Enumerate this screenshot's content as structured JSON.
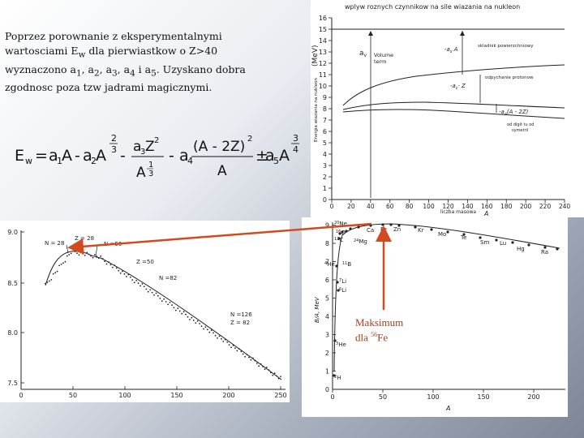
{
  "intro": {
    "line1": "Poprzez porownanie z eksperymentalnymi",
    "line2_a": "wartosciami E",
    "line2_sub": "w",
    "line2_b": " dla pierwiastkow o Z>40",
    "line3": "wyznaczono a",
    "line3_tail": " i  a",
    "line3_end": ". Uzyskano dobra",
    "line4": "zgodnosc poza tzw jadrami magicznymi.",
    "sub1": "1",
    "sub2": "2",
    "sub3": "3",
    "sub4": "4",
    "sub5": "5"
  },
  "formula": {
    "lhs": "E",
    "lhs_sub": "w",
    "eq": "=",
    "a1A": "a",
    "s1": "1",
    "A": "A",
    "minus": "-",
    "a2": "a",
    "s2": "2",
    "exp_num": "2",
    "exp_den": "3",
    "frac1_num": "a",
    "s3": "3",
    "frac1_Z": "Z",
    "sq": "2",
    "frac1_den": "A",
    "den_exp": "1",
    "den_exp2": "3",
    "minus2": "-",
    "a4": "a",
    "s4": "4",
    "frac2_num": "(A - 2Z)",
    "frac2_den": "A",
    "pm": "±",
    "a5": "a",
    "s5": "5",
    "exp2_num": "3",
    "exp2_den": "4"
  },
  "top_chart": {
    "title": "wplyw roznych czynnikow na sile wiazania na nukleon",
    "ylabel_text": "Energia wiazania na nukleon",
    "ylabel_unit": "(MeV)",
    "xlabel_text": "liczba masowa",
    "xlabel_var": "A",
    "y_ticks": [
      "0",
      "1",
      "2",
      "3",
      "4",
      "5",
      "6",
      "7",
      "8",
      "9",
      "10",
      "11",
      "12",
      "13",
      "14",
      "15",
      "16"
    ],
    "x_ticks": [
      "0",
      "20",
      "40",
      "60",
      "80",
      "100",
      "120",
      "140",
      "160",
      "180",
      "200",
      "220",
      "240"
    ],
    "ann_volume_a": "a",
    "ann_volume_sub": "v",
    "ann_volume1": "Volume",
    "ann_volume2": "term",
    "ann_surface_label": "skladnik powierzchniowy",
    "ann_surface_formula": "-a",
    "ann_surface_sub": "s",
    "ann_surface_rest": " A",
    "ann_coulomb_label": "odpychanie protonow",
    "ann_coulomb_formula": "-a",
    "ann_coulomb_sub": "c",
    "ann_coulomb_rest": "· Z",
    "ann_asym_formula": "-a",
    "ann_asym_sub": "a",
    "ann_asym_rest": "(A - 2Z)",
    "ann_asym_label1": "od digit tu od",
    "ann_asym_label2": "symetrii"
  },
  "left_chart": {
    "y_ticks": [
      "9.0",
      "8.5",
      "8.0",
      "7.5"
    ],
    "x_ticks": [
      "0",
      "50",
      "100",
      "150",
      "200",
      "250"
    ],
    "labels": {
      "n28": "N = 28",
      "z28": "Z = 28",
      "n50": "N =50",
      "z50": "Z =50",
      "n82": "N =82",
      "n126": "N =126",
      "z82": "Z = 82"
    }
  },
  "right_chart": {
    "ylabel": "B/A, MeV",
    "xlabel": "A",
    "y_ticks": [
      "0",
      "1",
      "2",
      "3",
      "4",
      "5",
      "6",
      "7",
      "8",
      "9"
    ],
    "x_ticks": [
      "0",
      "50",
      "100",
      "150",
      "200"
    ],
    "labels": {
      "ne": "Ne",
      "ne_sup": "20",
      "c": "C",
      "c_sup": "12",
      "o": "O",
      "o_sup": "16",
      "ca": "Ca",
      "mg": "Mg",
      "mg_sup": "24",
      "fe": "Fe",
      "zn": "Zn",
      "kr": "Kr",
      "mo": "Mo",
      "te": "Te",
      "sm": "Sm",
      "lu": "Lu",
      "hg": "Hg",
      "ra": "Ra",
      "b": "B",
      "b_sup": "11",
      "he4": "He",
      "he4_sup": "4",
      "li7": "Li",
      "li7_sup": "7",
      "li6": "Li",
      "li6_sup": "6",
      "he3": "He",
      "he3_sup": "3",
      "h2": "H",
      "h2_sup": "2"
    }
  },
  "maximum": {
    "line1": "Maksimum",
    "line2": "dla ",
    "sup": "56",
    "el": "Fe"
  },
  "colors": {
    "arrow": "#d24b1f"
  }
}
